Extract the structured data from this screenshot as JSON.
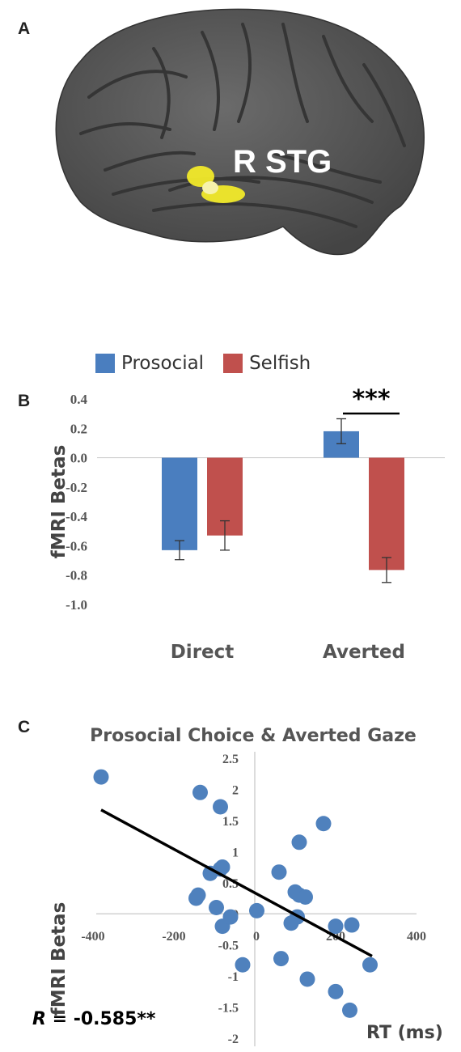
{
  "panels": {
    "a": "A",
    "b": "B",
    "c": "C"
  },
  "brain": {
    "label": "R STG",
    "cortex_color": "#5a5a5a",
    "sulcus_color": "#3f3f3f",
    "highlight_color": "#f2ea2a"
  },
  "legend": [
    {
      "name": "Prosocial",
      "color": "#4a7ebf"
    },
    {
      "name": "Selfish",
      "color": "#c0504d"
    }
  ],
  "chart_data": [
    {
      "type": "bar",
      "categories": [
        "Direct",
        "Averted"
      ],
      "series": [
        {
          "name": "Prosocial",
          "values": [
            -0.63,
            0.18
          ],
          "errors": [
            0.065,
            0.085
          ],
          "color": "#4a7ebf"
        },
        {
          "name": "Selfish",
          "values": [
            -0.53,
            -0.765
          ],
          "errors": [
            0.1,
            0.085
          ],
          "color": "#c0504d"
        }
      ],
      "ylabel": "fMRI Betas",
      "ylim": [
        -1.0,
        0.4
      ],
      "yticks": [
        "0.4",
        "0.2",
        "0.0",
        "-0.2",
        "-0.4",
        "-0.6",
        "-0.8",
        "-1.0"
      ],
      "yticks_values": [
        0.4,
        0.2,
        0.0,
        -0.2,
        -0.4,
        -0.6,
        -0.8,
        -1.0
      ],
      "annotation": "***",
      "legend_position": "top"
    },
    {
      "type": "scatter",
      "title": "Prosocial Choice & Averted Gaze",
      "xlabel": "RT (ms)",
      "ylabel": "fMRI Betas",
      "xlim": [
        -400,
        400
      ],
      "ylim": [
        -2,
        2.5
      ],
      "xticks": [
        -400,
        -200,
        0,
        200,
        400
      ],
      "xtick_labels": [
        "-400",
        "-200",
        "0",
        "200",
        "400"
      ],
      "yticks": [
        2.5,
        2,
        1.5,
        1,
        0.5,
        0,
        -0.5,
        -1,
        -1.5,
        -2
      ],
      "ytick_labels": [
        "2.5",
        "2",
        "1.5",
        "1",
        "0.5",
        "0",
        "-0.5",
        "-1",
        "-1.5",
        "-2"
      ],
      "point_color": "#4f81bd",
      "points": [
        {
          "x": -380,
          "y": 2.2
        },
        {
          "x": -135,
          "y": 1.95
        },
        {
          "x": -85,
          "y": 1.72
        },
        {
          "x": -145,
          "y": 0.25
        },
        {
          "x": -140,
          "y": 0.3
        },
        {
          "x": -110,
          "y": 0.65
        },
        {
          "x": -85,
          "y": 0.72
        },
        {
          "x": -80,
          "y": 0.75
        },
        {
          "x": -95,
          "y": 0.1
        },
        {
          "x": -80,
          "y": -0.2
        },
        {
          "x": -60,
          "y": -0.05
        },
        {
          "x": 5,
          "y": 0.05
        },
        {
          "x": -30,
          "y": -0.82
        },
        {
          "x": 65,
          "y": -0.72
        },
        {
          "x": 60,
          "y": 0.67
        },
        {
          "x": 100,
          "y": 0.35
        },
        {
          "x": 110,
          "y": 0.3
        },
        {
          "x": 125,
          "y": 0.27
        },
        {
          "x": 110,
          "y": 1.15
        },
        {
          "x": 170,
          "y": 1.45
        },
        {
          "x": 105,
          "y": -0.05
        },
        {
          "x": 90,
          "y": -0.15
        },
        {
          "x": 200,
          "y": -0.2
        },
        {
          "x": 240,
          "y": -0.18
        },
        {
          "x": 130,
          "y": -1.05
        },
        {
          "x": 200,
          "y": -1.25
        },
        {
          "x": 235,
          "y": -1.55
        },
        {
          "x": 285,
          "y": -0.82
        }
      ],
      "trendline": {
        "x": [
          -380,
          290
        ],
        "y": [
          1.67,
          -0.68
        ]
      },
      "annotation": {
        "prefix": "R",
        "text": " = -0.585**"
      }
    }
  ]
}
